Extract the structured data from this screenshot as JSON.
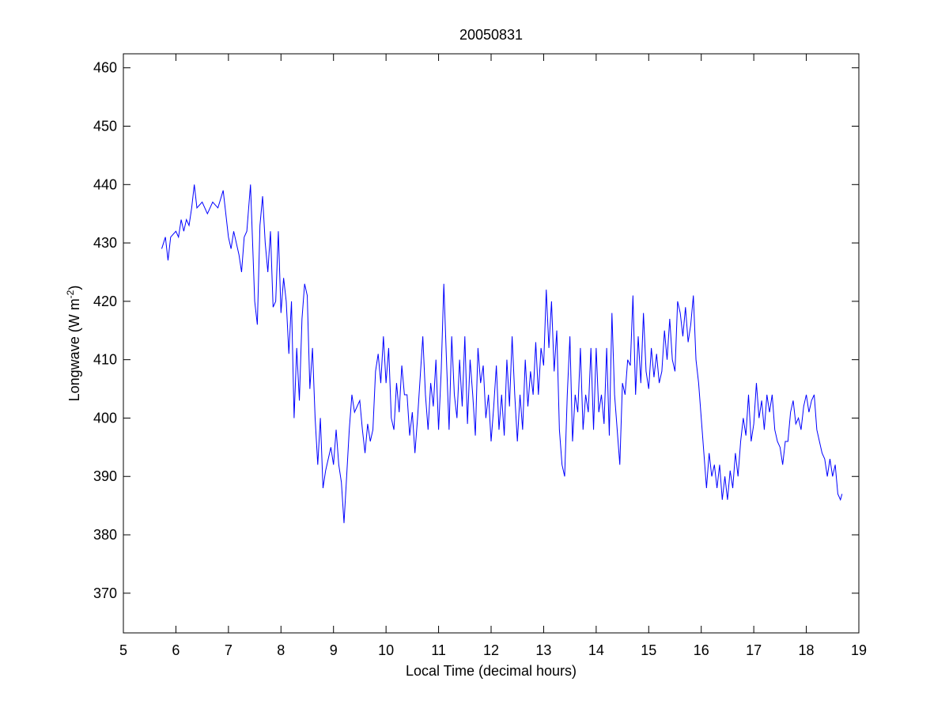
{
  "chart_data": {
    "type": "line",
    "title": "20050831",
    "xlabel": "Local Time (decimal hours)",
    "ylabel_parts": [
      "Longwave (W m",
      "-2",
      ")"
    ],
    "xlim": [
      5,
      19
    ],
    "xticks": [
      5,
      6,
      7,
      8,
      9,
      10,
      11,
      12,
      13,
      14,
      15,
      16,
      17,
      18,
      19
    ],
    "ylim": [
      363.2,
      462.4
    ],
    "yticks": [
      370,
      380,
      390,
      400,
      410,
      420,
      430,
      440,
      450,
      460
    ],
    "grid": false,
    "x": [
      5.73,
      5.8,
      5.85,
      5.9,
      6.0,
      6.05,
      6.1,
      6.15,
      6.2,
      6.25,
      6.3,
      6.35,
      6.4,
      6.5,
      6.6,
      6.7,
      6.8,
      6.9,
      7.0,
      7.05,
      7.1,
      7.2,
      7.25,
      7.3,
      7.35,
      7.42,
      7.5,
      7.55,
      7.6,
      7.65,
      7.7,
      7.75,
      7.8,
      7.85,
      7.9,
      7.95,
      8.0,
      8.05,
      8.1,
      8.15,
      8.2,
      8.25,
      8.3,
      8.35,
      8.4,
      8.45,
      8.5,
      8.55,
      8.6,
      8.65,
      8.7,
      8.75,
      8.8,
      8.85,
      8.9,
      8.95,
      9.0,
      9.05,
      9.1,
      9.15,
      9.2,
      9.25,
      9.3,
      9.35,
      9.4,
      9.5,
      9.55,
      9.6,
      9.65,
      9.7,
      9.75,
      9.8,
      9.85,
      9.9,
      9.95,
      10.0,
      10.05,
      10.1,
      10.15,
      10.2,
      10.25,
      10.3,
      10.35,
      10.4,
      10.45,
      10.5,
      10.55,
      10.6,
      10.7,
      10.75,
      10.8,
      10.85,
      10.9,
      10.95,
      11.0,
      11.05,
      11.1,
      11.15,
      11.2,
      11.25,
      11.3,
      11.35,
      11.4,
      11.45,
      11.5,
      11.55,
      11.6,
      11.65,
      11.7,
      11.75,
      11.8,
      11.85,
      11.9,
      11.95,
      12.0,
      12.05,
      12.1,
      12.15,
      12.2,
      12.25,
      12.3,
      12.35,
      12.4,
      12.45,
      12.5,
      12.55,
      12.6,
      12.65,
      12.7,
      12.75,
      12.8,
      12.85,
      12.9,
      12.95,
      13.0,
      13.05,
      13.1,
      13.15,
      13.2,
      13.25,
      13.3,
      13.35,
      13.4,
      13.45,
      13.5,
      13.55,
      13.6,
      13.65,
      13.7,
      13.75,
      13.8,
      13.85,
      13.9,
      13.95,
      14.0,
      14.05,
      14.1,
      14.15,
      14.2,
      14.25,
      14.3,
      14.35,
      14.4,
      14.45,
      14.5,
      14.55,
      14.6,
      14.65,
      14.7,
      14.75,
      14.8,
      14.85,
      14.9,
      14.95,
      15.0,
      15.05,
      15.1,
      15.15,
      15.2,
      15.25,
      15.3,
      15.35,
      15.4,
      15.45,
      15.5,
      15.55,
      15.6,
      15.65,
      15.7,
      15.75,
      15.8,
      15.85,
      15.9,
      15.95,
      16.0,
      16.05,
      16.1,
      16.15,
      16.2,
      16.25,
      16.3,
      16.35,
      16.4,
      16.45,
      16.5,
      16.55,
      16.6,
      16.65,
      16.7,
      16.75,
      16.8,
      16.85,
      16.9,
      16.95,
      17.0,
      17.05,
      17.1,
      17.15,
      17.2,
      17.25,
      17.3,
      17.35,
      17.4,
      17.45,
      17.5,
      17.55,
      17.6,
      17.65,
      17.7,
      17.75,
      17.8,
      17.85,
      17.9,
      17.95,
      18.0,
      18.05,
      18.1,
      18.15,
      18.2,
      18.25,
      18.3,
      18.35,
      18.4,
      18.45,
      18.5,
      18.55,
      18.6,
      18.65,
      18.68
    ],
    "series": [
      {
        "name": "Longwave",
        "color": "#0000ff",
        "values": [
          429,
          431,
          427,
          431,
          432,
          431,
          434,
          432,
          434,
          433,
          436,
          440,
          436,
          437,
          435,
          437,
          436,
          439,
          431,
          429,
          432,
          428,
          425,
          431,
          432,
          440,
          420,
          416,
          433,
          438,
          430,
          425,
          432,
          419,
          420,
          432,
          418,
          424,
          420,
          411,
          420,
          400,
          412,
          403,
          417,
          423,
          421,
          405,
          412,
          400,
          392,
          400,
          388,
          391,
          393,
          395,
          392,
          398,
          392,
          389,
          382,
          390,
          398,
          404,
          401,
          403,
          398,
          394,
          399,
          396,
          398,
          408,
          411,
          406,
          414,
          406,
          412,
          400,
          398,
          406,
          401,
          409,
          404,
          404,
          397,
          401,
          394,
          400,
          414,
          404,
          398,
          406,
          402,
          410,
          398,
          408,
          423,
          410,
          398,
          414,
          404,
          400,
          410,
          402,
          414,
          399,
          410,
          404,
          397,
          412,
          406,
          409,
          400,
          404,
          396,
          402,
          409,
          398,
          404,
          397,
          410,
          402,
          414,
          404,
          396,
          404,
          398,
          410,
          402,
          408,
          404,
          413,
          404,
          412,
          409,
          422,
          412,
          420,
          408,
          415,
          398,
          392,
          390,
          404,
          414,
          396,
          404,
          401,
          412,
          398,
          404,
          401,
          412,
          398,
          412,
          401,
          404,
          399,
          412,
          397,
          418,
          404,
          398,
          392,
          406,
          404,
          410,
          409,
          421,
          404,
          414,
          406,
          418,
          408,
          405,
          412,
          407,
          411,
          406,
          408,
          415,
          410,
          417,
          410,
          408,
          420,
          418,
          414,
          419,
          413,
          416,
          421,
          410,
          406,
          400,
          394,
          388,
          394,
          390,
          392,
          388,
          392,
          386,
          390,
          386,
          391,
          388,
          394,
          390,
          396,
          400,
          397,
          404,
          396,
          399,
          406,
          400,
          403,
          398,
          404,
          401,
          404,
          398,
          396,
          395,
          392,
          396,
          396,
          401,
          403,
          399,
          400,
          398,
          402,
          404,
          401,
          403,
          404,
          398,
          396,
          394,
          393,
          390,
          393,
          390,
          392,
          387,
          386,
          387
        ]
      }
    ]
  }
}
